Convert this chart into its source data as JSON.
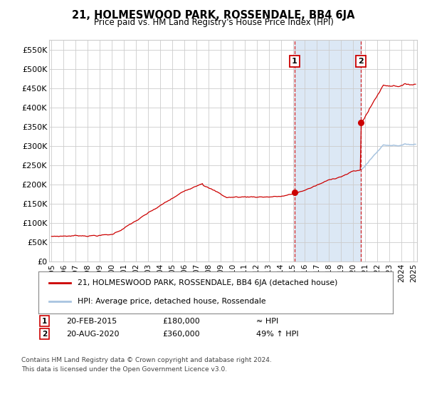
{
  "title": "21, HOLMESWOOD PARK, ROSSENDALE, BB4 6JA",
  "subtitle": "Price paid vs. HM Land Registry's House Price Index (HPI)",
  "hpi_label": "HPI: Average price, detached house, Rossendale",
  "property_label": "21, HOLMESWOOD PARK, ROSSENDALE, BB4 6JA (detached house)",
  "sale1_date": "20-FEB-2015",
  "sale1_price": 180000,
  "sale1_note": "≈ HPI",
  "sale2_date": "20-AUG-2020",
  "sale2_price": 360000,
  "sale2_note": "49% ↑ HPI",
  "hpi_color": "#a8c4e0",
  "property_color": "#cc0000",
  "shaded_color": "#dce8f5",
  "dashed_color": "#cc0000",
  "background_color": "#ffffff",
  "grid_color": "#cccccc",
  "ylim": [
    0,
    575000
  ],
  "yticks": [
    0,
    50000,
    100000,
    150000,
    200000,
    250000,
    300000,
    350000,
    400000,
    450000,
    500000,
    550000
  ],
  "ytick_labels": [
    "£0",
    "£50K",
    "£100K",
    "£150K",
    "£200K",
    "£250K",
    "£300K",
    "£350K",
    "£400K",
    "£450K",
    "£500K",
    "£550K"
  ],
  "x_start_year": 1995,
  "x_end_year": 2025,
  "sale1_x": 2015.13,
  "sale2_x": 2020.63,
  "footnote1": "Contains HM Land Registry data © Crown copyright and database right 2024.",
  "footnote2": "This data is licensed under the Open Government Licence v3.0."
}
